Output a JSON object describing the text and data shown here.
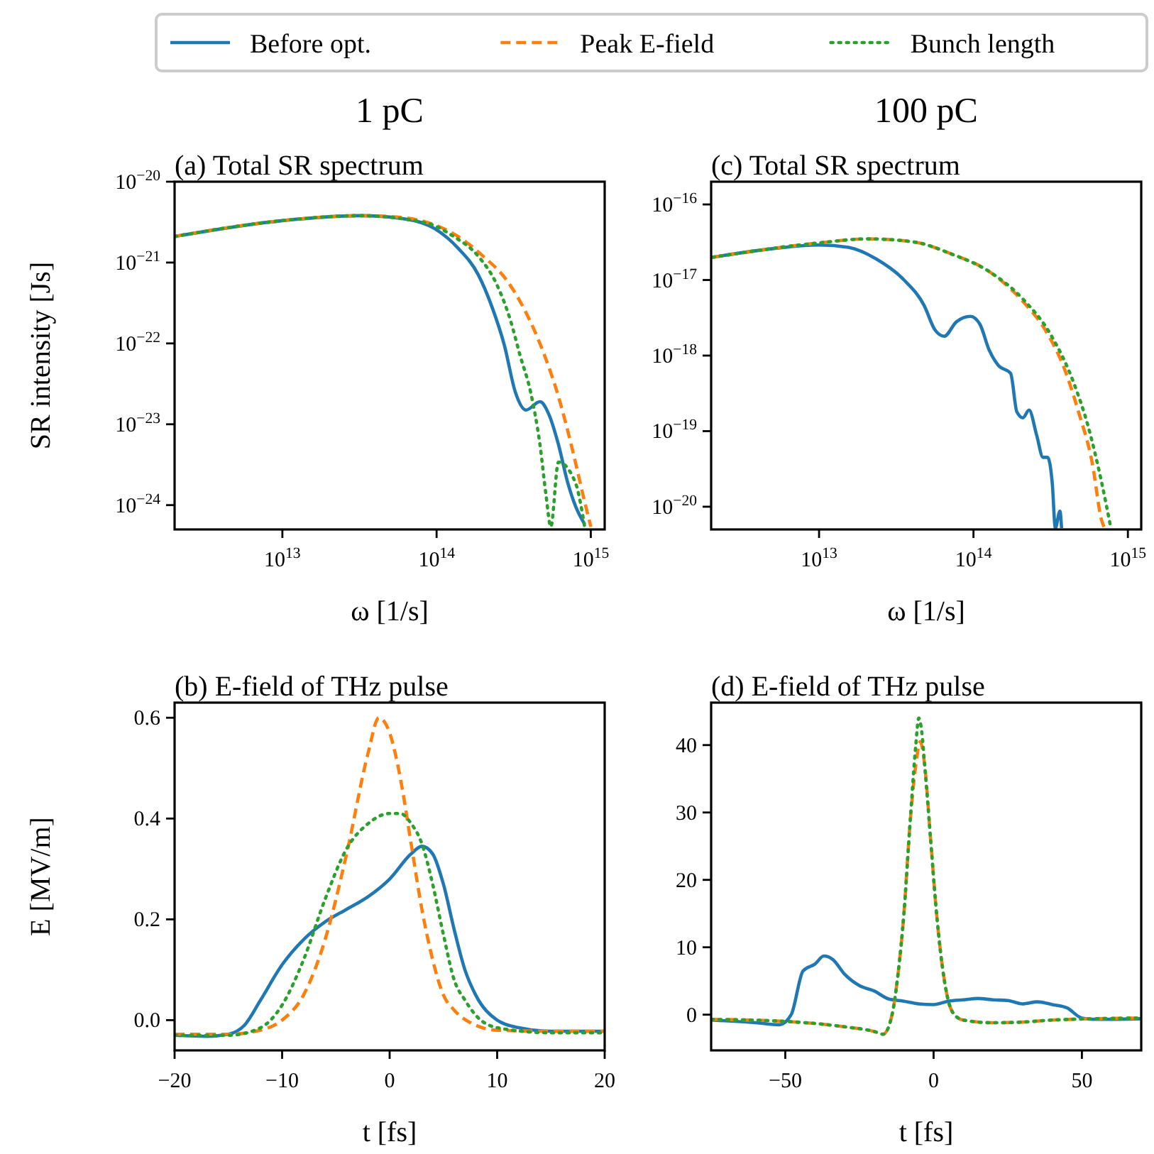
{
  "chart_data": [
    {
      "type": "line",
      "title": "1 pC",
      "subtitle": "(a) Total SR spectrum",
      "xlabel": "ω [1/s]",
      "ylabel": "SR intensity [Js]",
      "log": "xy",
      "legend": "top",
      "xlim": [
        2000000000000.0,
        1230000000000000.0
      ],
      "ylim": [
        5e-25,
        1e-20
      ],
      "xticks": [
        {
          "value": 10000000000000.0,
          "label": "10$^{13}$"
        },
        {
          "value": 100000000000000.0,
          "label": "10$^{14}$"
        },
        {
          "value": 1000000000000000.0,
          "label": "10$^{15}$"
        }
      ],
      "yticks": [
        {
          "value": 1e-24,
          "label": "10$^{−24}$"
        },
        {
          "value": 1e-23,
          "label": "10$^{−23}$"
        },
        {
          "value": 1e-22,
          "label": "10$^{−22}$"
        },
        {
          "value": 1e-21,
          "label": "10$^{−21}$"
        },
        {
          "value": 1e-20,
          "label": "10$^{−20}$"
        }
      ],
      "series": [
        {
          "name": "Before opt.",
          "color": "#1f77b4",
          "line_style": "solid",
          "x": [
            2000000000000.0,
            10000000000000.0,
            31600000000000.0,
            60000000000000.0,
            98000000000000.0,
            138000000000000.0,
            186000000000000.0,
            229000000000000.0,
            275000000000000.0,
            324000000000000.0,
            380000000000000.0,
            468000000000000.0,
            537000000000000.0,
            617000000000000.0,
            708000000000000.0,
            794000000000000.0,
            912000000000000.0
          ],
          "values": [
            2.1e-21,
            3.3e-21,
            3.8e-21,
            3.5e-21,
            2.6e-21,
            1.5e-21,
            7.1e-22,
            2.8e-22,
            9.5e-23,
            2.5e-23,
            1.5e-23,
            1.9e-23,
            1.3e-23,
            5.6e-24,
            1.9e-24,
            9.8e-25,
            5.8e-25
          ]
        },
        {
          "name": "Peak E-field",
          "color": "#ff7f0e",
          "line_style": "dashed",
          "x": [
            2000000000000.0,
            10000000000000.0,
            31600000000000.0,
            60000000000000.0,
            98000000000000.0,
            138000000000000.0,
            200000000000000.0,
            282000000000000.0,
            380000000000000.0,
            500000000000000.0,
            617000000000000.0,
            759000000000000.0,
            912000000000000.0,
            1000000000000000.0
          ],
          "values": [
            2.1e-21,
            3.3e-21,
            3.8e-21,
            3.6e-21,
            2.9e-21,
            2.1e-21,
            1.2e-21,
            6.2e-22,
            2.4e-22,
            7.2e-23,
            2.2e-23,
            4.9e-24,
            1.1e-24,
            5.4e-25
          ]
        },
        {
          "name": "Bunch length",
          "color": "#2ca02c",
          "line_style": "dotted",
          "x": [
            2000000000000.0,
            10000000000000.0,
            31600000000000.0,
            85000000000000.0,
            129000000000000.0,
            186000000000000.0,
            245000000000000.0,
            302000000000000.0,
            347000000000000.0,
            407000000000000.0,
            468000000000000.0,
            513000000000000.0,
            550000000000000.0,
            617000000000000.0,
            794000000000000.0,
            912000000000000.0
          ],
          "values": [
            2.1e-21,
            3.3e-21,
            3.8e-21,
            3.1e-21,
            2.1e-21,
            1.2e-21,
            5.4e-22,
            1.9e-22,
            7.2e-23,
            2.5e-23,
            5.6e-24,
            1.3e-24,
            5.4e-25,
            3.4e-24,
            1.9e-24,
            5.4e-25
          ]
        }
      ]
    },
    {
      "type": "line",
      "title": "100 pC",
      "subtitle": "(c) Total SR spectrum",
      "xlabel": "ω [1/s]",
      "log": "xy",
      "xlim": [
        2000000000000.0,
        1220000000000000.0
      ],
      "ylim": [
        5e-21,
        2e-16
      ],
      "xticks": [
        {
          "value": 10000000000000.0,
          "label": "10$^{13}$"
        },
        {
          "value": 100000000000000.0,
          "label": "10$^{14}$"
        },
        {
          "value": 1000000000000000.0,
          "label": "10$^{15}$"
        }
      ],
      "yticks": [
        {
          "value": 1e-20,
          "label": "10$^{−20}$"
        },
        {
          "value": 1e-19,
          "label": "10$^{−19}$"
        },
        {
          "value": 1e-18,
          "label": "10$^{−18}$"
        },
        {
          "value": 1e-17,
          "label": "10$^{−17}$"
        },
        {
          "value": 1e-16,
          "label": "10$^{−16}$"
        }
      ],
      "series": [
        {
          "color": "#1f77b4",
          "line_style": "solid",
          "x": [
            2040000000000.0,
            5000000000000.0,
            10000000000000.0,
            15500000000000.0,
            23400000000000.0,
            35500000000000.0,
            47900000000000.0,
            56200000000000.0,
            64600000000000.0,
            77600000000000.0,
            95500000000000.0,
            110000000000000.0,
            126000000000000.0,
            145000000000000.0,
            174000000000000.0,
            191000000000000.0,
            209000000000000.0,
            229000000000000.0,
            257000000000000.0,
            282000000000000.0,
            302000000000000.0,
            324000000000000.0,
            339000000000000.0,
            363000000000000.0,
            372000000000000.0
          ],
          "values": [
            2e-17,
            2.6e-17,
            2.9e-17,
            2.7e-17,
            1.9e-17,
            1e-17,
            4.6e-18,
            2.2e-18,
            1.8e-18,
            2.8e-18,
            3.3e-18,
            2.6e-18,
            1.2e-18,
            7.4e-19,
            5.8e-19,
            1.8e-19,
            1.5e-19,
            1.9e-19,
            8.7e-20,
            4.5e-20,
            4.5e-20,
            2e-20,
            5.2e-21,
            8.7e-21,
            5.2e-21
          ]
        },
        {
          "color": "#ff7f0e",
          "line_style": "dashed",
          "x": [
            2040000000000.0,
            10000000000000.0,
            20400000000000.0,
            40700000000000.0,
            72400000000000.0,
            126000000000000.0,
            209000000000000.0,
            295000000000000.0,
            389000000000000.0,
            479000000000000.0,
            589000000000000.0,
            676000000000000.0,
            708000000000000.0
          ],
          "values": [
            2e-17,
            3.1e-17,
            3.5e-17,
            3.2e-17,
            2.2e-17,
            1.3e-17,
            5.2e-18,
            2.1e-18,
            6.6e-19,
            1.8e-19,
            3.7e-20,
            6.6e-21,
            5.2e-21
          ]
        },
        {
          "color": "#2ca02c",
          "line_style": "dotted",
          "x": [
            2040000000000.0,
            10000000000000.0,
            20400000000000.0,
            40700000000000.0,
            72400000000000.0,
            126000000000000.0,
            209000000000000.0,
            316000000000000.0,
            447000000000000.0,
            550000000000000.0,
            676000000000000.0,
            776000000000000.0
          ],
          "values": [
            2e-17,
            3.1e-17,
            3.5e-17,
            3.2e-17,
            2.2e-17,
            1.3e-17,
            5.6e-18,
            1.9e-18,
            4.3e-19,
            1.2e-19,
            2.1e-20,
            5.2e-21
          ]
        }
      ]
    },
    {
      "type": "line",
      "title": "(b) E-field of THz pulse",
      "xlabel": "t [fs]",
      "ylabel": "E [MV/m]",
      "xlim": [
        -20,
        20
      ],
      "ylim": [
        -0.06,
        0.63
      ],
      "xticks": [
        {
          "value": -20,
          "label": "−20"
        },
        {
          "value": -10,
          "label": "−10"
        },
        0,
        10,
        20
      ],
      "yticks": [
        {
          "value": 0,
          "label": "0.0"
        },
        0.2,
        0.4,
        0.6
      ],
      "series": [
        {
          "color": "#1f77b4",
          "line_style": "solid",
          "x": [
            -20,
            -17,
            -15,
            -13.5,
            -12,
            -10,
            -8,
            -6,
            -4,
            -2,
            0,
            2,
            3,
            4,
            5,
            6,
            7,
            8,
            10,
            12,
            15,
            20
          ],
          "values": [
            -0.03,
            -0.032,
            -0.028,
            -0.01,
            0.04,
            0.11,
            0.16,
            0.195,
            0.22,
            0.245,
            0.28,
            0.33,
            0.345,
            0.33,
            0.27,
            0.18,
            0.1,
            0.05,
            0.0,
            -0.015,
            -0.022,
            -0.022
          ]
        },
        {
          "color": "#ff7f0e",
          "line_style": "dashed",
          "x": [
            -20,
            -15,
            -12,
            -10,
            -8,
            -6,
            -4,
            -2,
            -1,
            0,
            1,
            2,
            3,
            4,
            5,
            6,
            8,
            10,
            15,
            20
          ],
          "values": [
            -0.028,
            -0.028,
            -0.02,
            0.0,
            0.05,
            0.16,
            0.33,
            0.53,
            0.6,
            0.57,
            0.48,
            0.35,
            0.22,
            0.12,
            0.05,
            0.02,
            -0.01,
            -0.02,
            -0.022,
            -0.022
          ]
        },
        {
          "color": "#2ca02c",
          "line_style": "dotted",
          "x": [
            -20,
            -15,
            -12,
            -10,
            -8,
            -6,
            -4,
            -2,
            0,
            1,
            2,
            3,
            4,
            5,
            6,
            7,
            8,
            10,
            15,
            20
          ],
          "values": [
            -0.03,
            -0.03,
            -0.015,
            0.03,
            0.12,
            0.24,
            0.34,
            0.39,
            0.41,
            0.41,
            0.39,
            0.35,
            0.27,
            0.17,
            0.08,
            0.04,
            0.01,
            -0.015,
            -0.025,
            -0.025
          ]
        }
      ]
    },
    {
      "type": "line",
      "title": "(d) E-field of THz pulse",
      "xlabel": "t [fs]",
      "xlim": [
        -75,
        70
      ],
      "ylim": [
        -5.3,
        46.3
      ],
      "xticks": [
        {
          "value": -50,
          "label": "−50"
        },
        0,
        50
      ],
      "yticks": [
        0,
        10,
        20,
        30,
        40
      ],
      "series": [
        {
          "color": "#1f77b4",
          "line_style": "solid",
          "x": [
            -75,
            -60,
            -52,
            -48,
            -44,
            -40,
            -37,
            -34,
            -30,
            -25,
            -20,
            -15,
            -10,
            -5,
            0,
            5,
            10,
            15,
            20,
            25,
            30,
            35,
            40,
            45,
            50,
            55,
            70
          ],
          "values": [
            -0.8,
            -1.2,
            -1.5,
            0,
            6.5,
            7.5,
            8.7,
            8.2,
            6,
            4.3,
            3.5,
            2.3,
            2,
            1.6,
            1.5,
            2,
            2.2,
            2.4,
            2.2,
            2.1,
            1.6,
            1.9,
            1.5,
            1,
            -0.5,
            -0.7,
            -0.6
          ]
        },
        {
          "color": "#ff7f0e",
          "line_style": "dashed",
          "x": [
            -75,
            -50,
            -30,
            -20,
            -17,
            -14,
            -12,
            -10,
            -8,
            -6,
            -4.5,
            -3,
            -1,
            1,
            3,
            5,
            7,
            10,
            20,
            30,
            40,
            70
          ],
          "values": [
            -0.7,
            -1,
            -1.8,
            -2.5,
            -2.9,
            0,
            6,
            15,
            28,
            37,
            40.5,
            37,
            26,
            15,
            7,
            2,
            0,
            -0.8,
            -1.2,
            -1.1,
            -0.8,
            -0.5
          ]
        },
        {
          "color": "#2ca02c",
          "line_style": "dotted",
          "x": [
            -75,
            -50,
            -30,
            -20,
            -17,
            -14,
            -12,
            -10,
            -8,
            -6,
            -5,
            -4,
            -3,
            -1,
            1,
            3,
            5,
            7,
            10,
            20,
            30,
            40,
            70
          ],
          "values": [
            -0.7,
            -1,
            -1.8,
            -2.5,
            -2.9,
            0,
            6,
            15,
            28,
            40,
            44,
            42,
            37,
            26,
            15,
            7,
            2,
            0,
            -0.8,
            -1.2,
            -1.1,
            -0.8,
            -0.5
          ]
        }
      ]
    }
  ]
}
